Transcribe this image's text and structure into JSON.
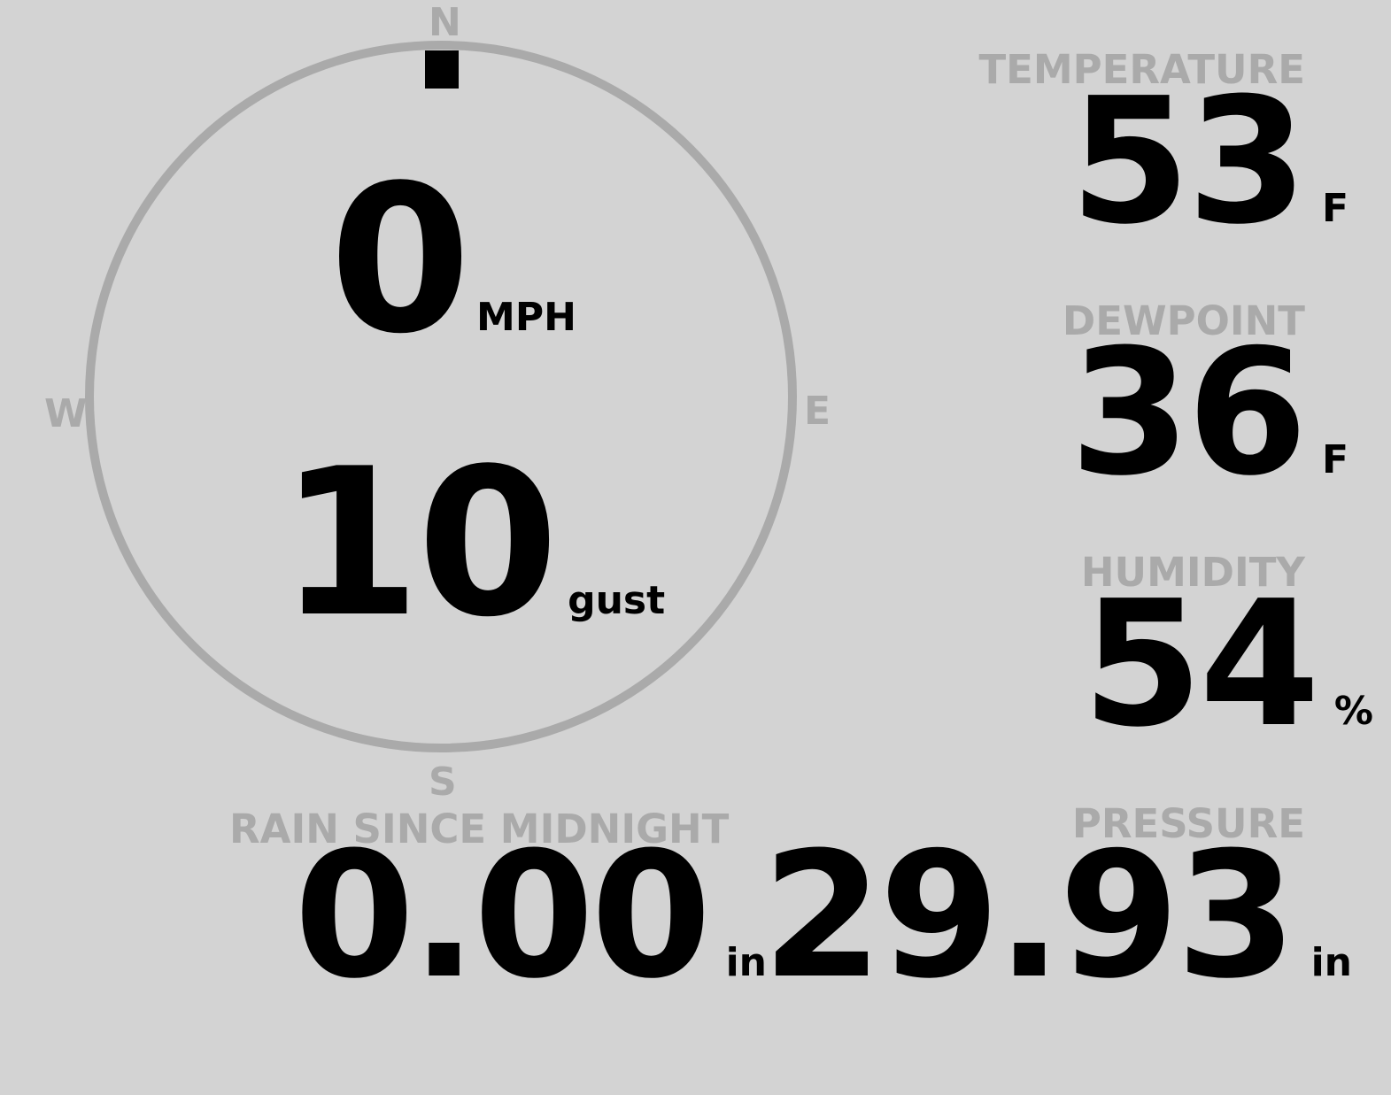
{
  "wind": {
    "compass": {
      "north": "N",
      "south": "S",
      "east": "E",
      "west": "W"
    },
    "direction_deg": 0,
    "speed": "0",
    "speed_unit": "MPH",
    "gust": "10",
    "gust_unit": "gust"
  },
  "temperature": {
    "label": "TEMPERATURE",
    "value": "53",
    "unit": "F"
  },
  "dewpoint": {
    "label": "DEWPOINT",
    "value": "36",
    "unit": "F"
  },
  "humidity": {
    "label": "HUMIDITY",
    "value": "54",
    "unit": "%"
  },
  "pressure": {
    "label": "PRESSURE",
    "value": "29.93",
    "unit": "in"
  },
  "rain": {
    "label": "RAIN SINCE MIDNIGHT",
    "value": "0.00",
    "unit": "in"
  },
  "colors": {
    "background": "#d3d3d3",
    "muted": "#aaaaaa",
    "text": "#000000"
  }
}
